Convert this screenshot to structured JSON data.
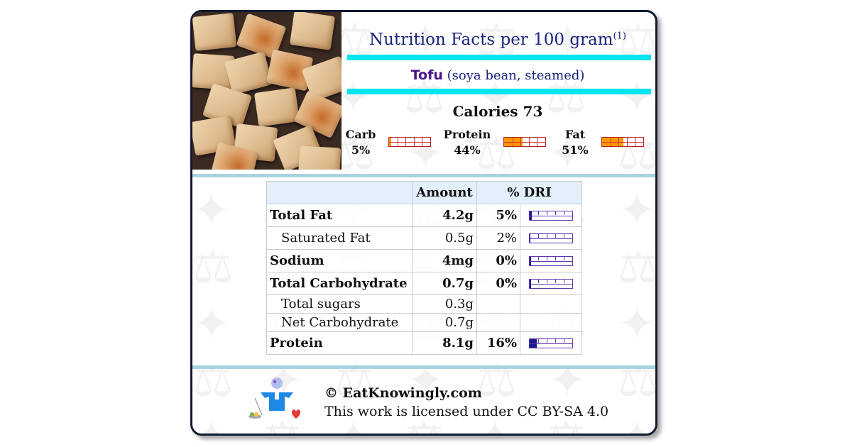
{
  "header": {
    "title": "Nutrition Facts per 100 gram",
    "title_ref": "(1)",
    "food_name": "Tofu",
    "food_desc": "(soya bean, steamed)",
    "calories_label": "Calories 73"
  },
  "macros": [
    {
      "label": "Carb",
      "percent_label": "5%",
      "percent": 5
    },
    {
      "label": "Protein",
      "percent_label": "44%",
      "percent": 44
    },
    {
      "label": "Fat",
      "percent_label": "51%",
      "percent": 51
    }
  ],
  "table": {
    "headers": [
      "",
      "Amount",
      "% DRI"
    ],
    "rows": [
      {
        "name": "Total Fat",
        "amount": "4.2g",
        "dri": "5%",
        "dri_value": 5,
        "bold": true
      },
      {
        "name": "Saturated Fat",
        "amount": "0.5g",
        "dri": "2%",
        "dri_value": 2,
        "bold": false
      },
      {
        "name": "Sodium",
        "amount": "4mg",
        "dri": "0%",
        "dri_value": 0,
        "bold": true
      },
      {
        "name": "Total Carbohydrate",
        "amount": "0.7g",
        "dri": "0%",
        "dri_value": 0,
        "bold": true
      },
      {
        "name": "Total sugars",
        "amount": "0.3g",
        "dri": "",
        "bold": false
      },
      {
        "name": "Net Carbohydrate",
        "amount": "0.7g",
        "dri": "",
        "bold": false
      },
      {
        "name": "Protein",
        "amount": "8.1g",
        "dri": "16%",
        "dri_value": 16,
        "bold": true
      }
    ]
  },
  "footer": {
    "copyright": "© EatKnowingly.com",
    "license": "This work is licensed under CC BY-SA 4.0"
  },
  "colors": {
    "title_blue": "#1a237e",
    "food_purple": "#4a148c",
    "cyan_rule": "#00e5ef",
    "macro_fill": "#ff9800",
    "dri_fill": "#1a1a8c"
  }
}
